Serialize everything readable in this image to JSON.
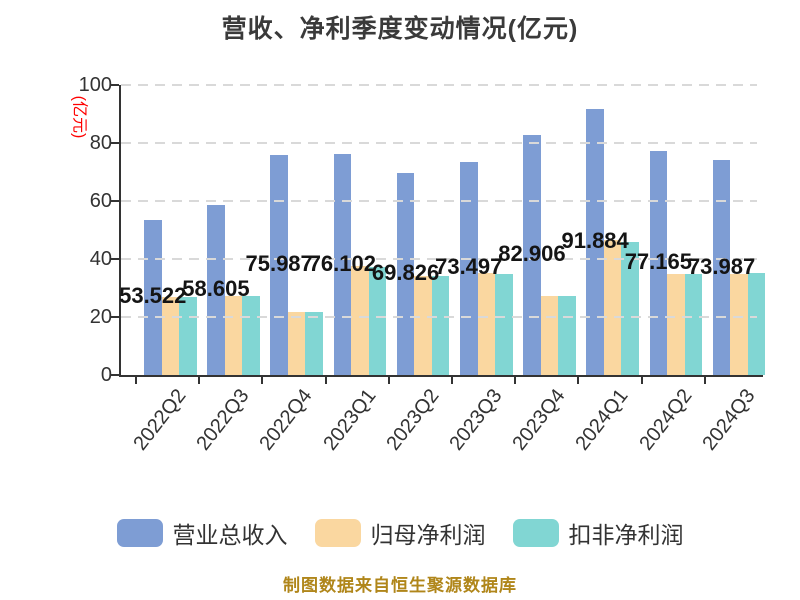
{
  "chart_data": {
    "type": "bar",
    "title": "营收、净利季度变动情况(亿元)",
    "ylabel": "(亿元)",
    "footer": "制图数据来自恒生聚源数据库",
    "categories": [
      "2022Q2",
      "2022Q3",
      "2022Q4",
      "2023Q1",
      "2023Q2",
      "2023Q3",
      "2023Q4",
      "2024Q1",
      "2024Q2",
      "2024Q3"
    ],
    "series": [
      {
        "name": "营业总收入",
        "color": "#7e9dd4",
        "values": [
          53.522,
          58.605,
          75.987,
          76.102,
          69.826,
          73.497,
          82.906,
          91.884,
          77.165,
          73.987
        ],
        "data_labels": [
          "53.522",
          "58.605",
          "75.987",
          "76.102",
          "69.826",
          "73.497",
          "82.906",
          "91.884",
          "77.165",
          "73.987"
        ]
      },
      {
        "name": "归母净利润",
        "color": "#fad7a0",
        "values": [
          27.0,
          27.4,
          21.8,
          37.5,
          34.0,
          35.1,
          27.3,
          46.4,
          34.7,
          34.7
        ]
      },
      {
        "name": "扣非净利润",
        "color": "#81d6d3",
        "values": [
          27.0,
          27.4,
          21.8,
          37.2,
          34.0,
          34.7,
          27.3,
          45.9,
          34.7,
          35.1
        ]
      }
    ],
    "ylim": [
      0,
      100
    ],
    "yticks": [
      0,
      20,
      40,
      60,
      80,
      100
    ],
    "grid": "horizontal dashed, drawn over bars",
    "legend_position": "bottom"
  },
  "colors": {
    "title": "#3a3a3a",
    "axis": "#333333",
    "tick_label": "#333333",
    "y_axis_title": "#ff0000",
    "grid": "#d9d9d9",
    "data_label": "#141414",
    "legend_text": "#333333",
    "footer": "#b0861a",
    "background": "#ffffff"
  }
}
